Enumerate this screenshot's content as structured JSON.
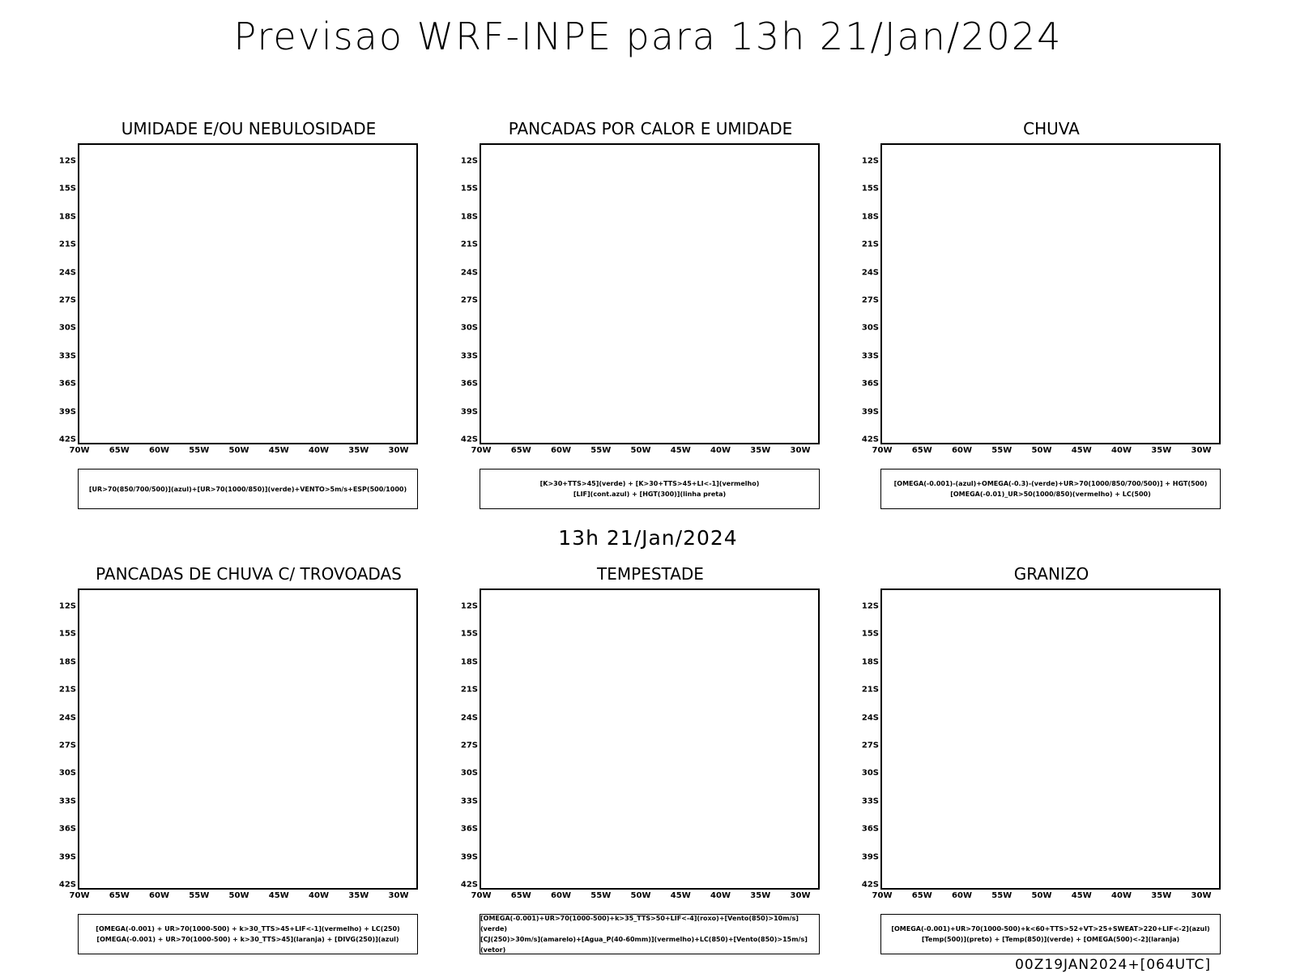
{
  "header": {
    "title": "Previsao WRF-INPE  para 13h 21/Jan/2024"
  },
  "middle": {
    "title": "13h 21/Jan/2024"
  },
  "footer": {
    "run": "00Z19JAN2024+[064UTC]"
  },
  "axes": {
    "lat_labels": [
      "12S",
      "15S",
      "18S",
      "21S",
      "24S",
      "27S",
      "30S",
      "33S",
      "36S",
      "39S",
      "42S"
    ],
    "lon_labels": [
      "70W",
      "65W",
      "60W",
      "55W",
      "50W",
      "45W",
      "40W",
      "35W",
      "30W"
    ]
  },
  "panels": [
    {
      "title": "UMIDADE E/OU NEBULOSIDADE",
      "legend": [
        "[UR>70(850/700/500)](azul)+[UR>70(1000/850)](verde)+VENTO>5m/s+ESP(500/1000)"
      ]
    },
    {
      "title": "PANCADAS POR CALOR E UMIDADE",
      "legend": [
        "[K>30+TTS>45](verde) + [K>30+TTS>45+LI<-1](vermelho)",
        "[LIF](cont.azul) + [HGT(300)](linha preta)"
      ]
    },
    {
      "title": "CHUVA",
      "legend": [
        "[OMEGA(-0.001)-(azul)+OMEGA(-0.3)-(verde)+UR>70(1000/850/700/500)] + HGT(500)",
        "[OMEGA(-0.01)_UR>50(1000/850)(vermelho) + LC(500)"
      ]
    },
    {
      "title": "PANCADAS DE CHUVA C/ TROVOADAS",
      "legend": [
        "[OMEGA(-0.001) + UR>70(1000-500) + k>30_TTS>45+LIF<-1](vermelho) + LC(250)",
        "[OMEGA(-0.001) + UR>70(1000-500) + k>30_TTS>45](laranja) + [DIVG(250)](azul)"
      ]
    },
    {
      "title": "TEMPESTADE",
      "legend": [
        "[OMEGA(-0.001)+UR>70(1000-500)+k>35_TTS>50+LIF<-4](roxo)+[Vento(850)>10m/s](verde)",
        "[CJ(250)>30m/s](amarelo)+[Agua_P(40-60mm)](vermelho)+LC(850)+[Vento(850)>15m/s](vetor)"
      ]
    },
    {
      "title": "GRANIZO",
      "legend": [
        "[OMEGA(-0.001)+UR>70(1000-500)+k<60+TTS>52+VT>25+SWEAT>220+LIF<-2](azul)",
        "[Temp(500)](preto) + [Temp(850)](verde) + [OMEGA(500)<-2](laranja)"
      ]
    }
  ]
}
